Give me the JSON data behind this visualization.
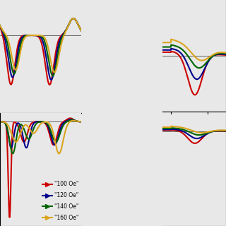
{
  "colors": {
    "100 Oe": "#cc0000",
    "120 Oe": "#00008b",
    "140 Oe": "#006400",
    "160 Oe": "#daa520"
  },
  "labels": [
    "100 Oe",
    "120 Oe",
    "140 Oe",
    "160 Oe"
  ],
  "bg_color": "#e8e8e8",
  "linewidth": 1.5
}
